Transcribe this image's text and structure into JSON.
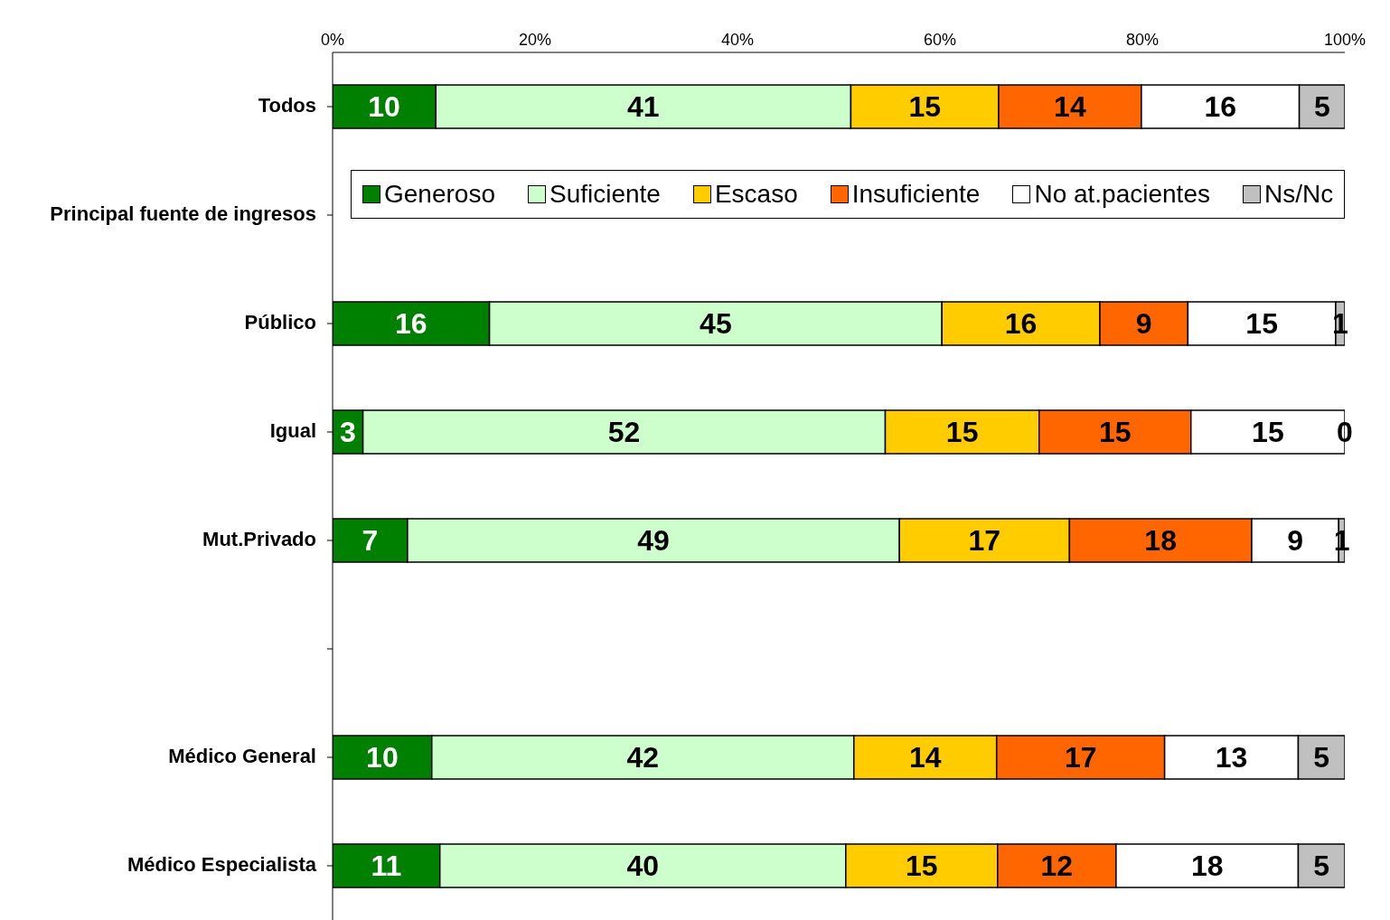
{
  "chart_data": {
    "type": "bar",
    "orientation": "horizontal",
    "stacked": true,
    "categories": [
      "Todos",
      "Principal fuente de ingresos",
      "Público",
      "Igual",
      "Mut.Privado",
      null,
      "Médico General",
      "Médico Especialista"
    ],
    "xlim": [
      0,
      100
    ],
    "xticks": [
      {
        "value": 0,
        "label": "0%"
      },
      {
        "value": 20,
        "label": "20%"
      },
      {
        "value": 40,
        "label": "40%"
      },
      {
        "value": 60,
        "label": "60%"
      },
      {
        "value": 80,
        "label": "80%"
      },
      {
        "value": 100,
        "label": "100%"
      }
    ],
    "series": [
      {
        "name": "Generoso",
        "color": "#008000",
        "values": [
          10.2,
          null,
          15.5,
          3.0,
          7.4,
          null,
          9.8,
          10.6
        ],
        "value_labels": [
          "10",
          null,
          "16",
          "3",
          "7",
          null,
          "10",
          "11"
        ]
      },
      {
        "name": "Suficiente",
        "color": "#ccffcc",
        "values": [
          41.0,
          null,
          44.7,
          51.6,
          48.6,
          null,
          41.7,
          40.1
        ],
        "value_labels": [
          "41",
          null,
          "45",
          "52",
          "49",
          null,
          "42",
          "40"
        ]
      },
      {
        "name": "Escaso",
        "color": "#ffcc00",
        "values": [
          14.6,
          null,
          15.6,
          15.2,
          16.8,
          null,
          14.1,
          15.0
        ],
        "value_labels": [
          "15",
          null,
          "16",
          "15",
          "17",
          null,
          "14",
          "15"
        ]
      },
      {
        "name": "Insuficiente",
        "color": "#ff6600",
        "values": [
          14.1,
          null,
          8.7,
          15.0,
          18.0,
          null,
          16.6,
          11.7
        ],
        "value_labels": [
          "14",
          null,
          "9",
          "15",
          "18",
          null,
          "17",
          "12"
        ]
      },
      {
        "name": "No at.pacientes",
        "color": "#ffffff",
        "values": [
          15.6,
          null,
          14.6,
          15.2,
          8.6,
          null,
          13.2,
          18.0
        ],
        "value_labels": [
          "16",
          null,
          "15",
          "15",
          "9",
          null,
          "13",
          "18"
        ]
      },
      {
        "name": "Ns/Nc",
        "color": "#c0c0c0",
        "values": [
          4.5,
          null,
          0.9,
          0.0,
          0.6,
          null,
          4.6,
          4.6
        ],
        "value_labels": [
          "5",
          null,
          "1",
          "0",
          "1",
          null,
          "5",
          "5"
        ]
      }
    ],
    "legend": "top"
  }
}
